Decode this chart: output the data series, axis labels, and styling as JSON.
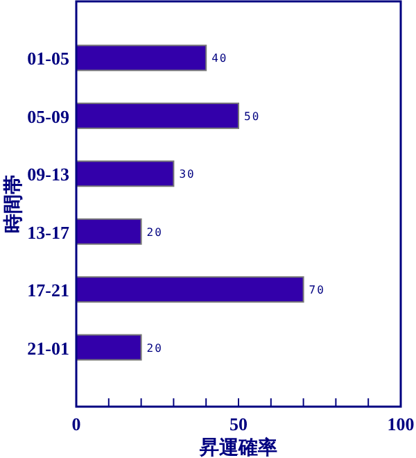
{
  "chart_data": {
    "type": "bar",
    "orientation": "horizontal",
    "xlabel": "昇運確率",
    "ylabel": "時間帯",
    "categories": [
      "01-05",
      "05-09",
      "09-13",
      "13-17",
      "17-21",
      "21-01"
    ],
    "values": [
      40,
      50,
      30,
      20,
      70,
      20
    ],
    "color": "#3300aa",
    "data_labels": true,
    "xlim": [
      0,
      100
    ],
    "xticks": [
      0,
      {
        "value": 10,
        "label": null
      },
      {
        "value": 20,
        "label": null
      },
      {
        "value": 30,
        "label": null
      },
      {
        "value": 40,
        "label": null
      },
      50,
      {
        "value": 60,
        "label": null
      },
      {
        "value": 70,
        "label": null
      },
      {
        "value": 80,
        "label": null
      },
      {
        "value": 90,
        "label": null
      },
      100
    ],
    "grid": false
  }
}
